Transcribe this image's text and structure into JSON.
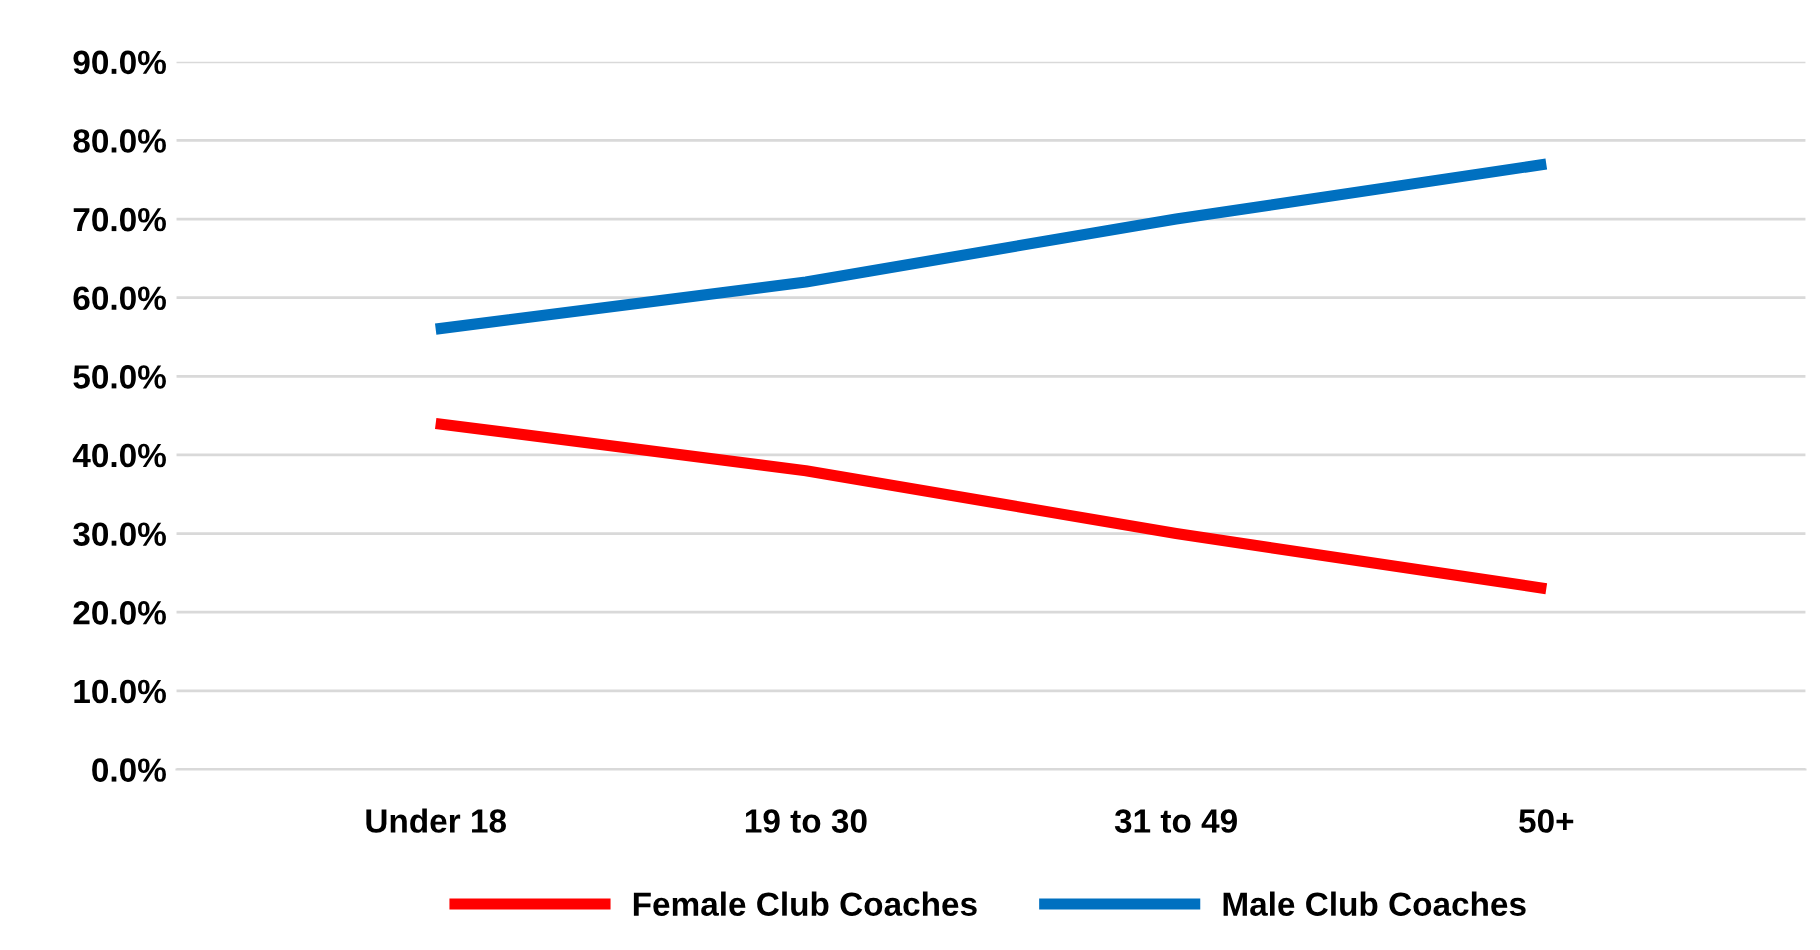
{
  "chart_data": {
    "type": "line",
    "categories": [
      "Under 18",
      "19 to 30",
      "31 to 49",
      "50+"
    ],
    "series": [
      {
        "name": "Female Club Coaches",
        "color": "#ff0000",
        "values": [
          44,
          38,
          30,
          23
        ]
      },
      {
        "name": "Male Club Coaches",
        "color": "#0070c0",
        "values": [
          56,
          62,
          70,
          77
        ]
      }
    ],
    "ylim": [
      0,
      90
    ],
    "yticks": [
      {
        "value": 0,
        "label": "0.0%"
      },
      {
        "value": 10,
        "label": "10.0%"
      },
      {
        "value": 20,
        "label": "20.0%"
      },
      {
        "value": 30,
        "label": "30.0%"
      },
      {
        "value": 40,
        "label": "40.0%"
      },
      {
        "value": 50,
        "label": "50.0%"
      },
      {
        "value": 60,
        "label": "60.0%"
      },
      {
        "value": 70,
        "label": "70.0%"
      },
      {
        "value": 80,
        "label": "80.0%"
      },
      {
        "value": 90,
        "label": "90.0%"
      }
    ],
    "grid": "y",
    "legend": "bottom",
    "marker": "none",
    "line_style": "solid"
  }
}
